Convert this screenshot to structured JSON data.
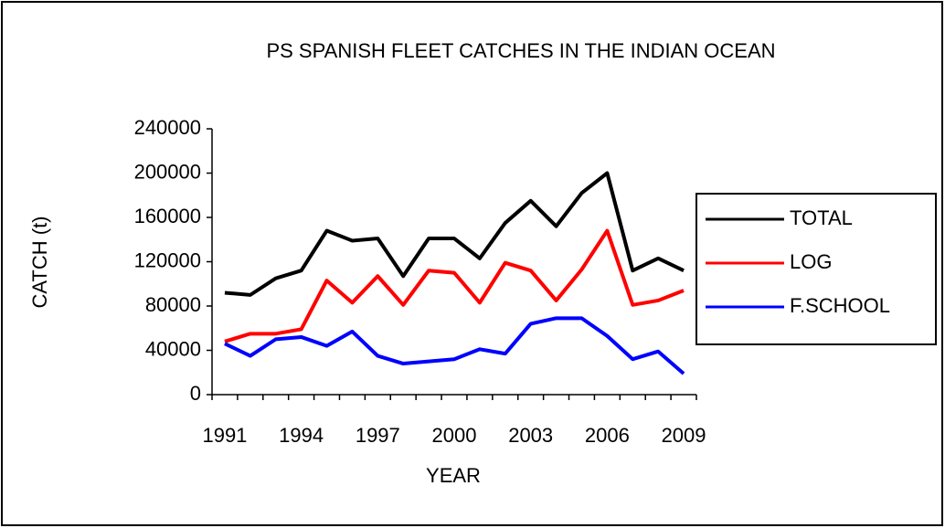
{
  "chart_data": {
    "type": "line",
    "title": "PS SPANISH FLEET CATCHES IN THE INDIAN OCEAN",
    "x_label": "YEAR",
    "y_label": "CATCH (t)",
    "categories": [
      "1991",
      null,
      null,
      "1994",
      null,
      null,
      "1997",
      null,
      null,
      "2000",
      null,
      null,
      "2003",
      null,
      null,
      "2006",
      null,
      null,
      "2009"
    ],
    "series": [
      {
        "name": "TOTAL",
        "color": "#000000",
        "values": [
          92000,
          90000,
          105000,
          112000,
          148000,
          139000,
          141000,
          107000,
          141000,
          141000,
          123000,
          155000,
          175000,
          152000,
          182000,
          200000,
          112000,
          123000,
          112000
        ]
      },
      {
        "name": "LOG",
        "color": "#ff0000",
        "values": [
          48000,
          55000,
          55000,
          59000,
          103000,
          83000,
          107000,
          81000,
          112000,
          110000,
          83000,
          119000,
          112000,
          85000,
          113000,
          148000,
          81000,
          85000,
          94000
        ]
      },
      {
        "name": "F.SCHOOL",
        "color": "#0000ff",
        "values": [
          46000,
          35000,
          50000,
          52000,
          44000,
          57000,
          35000,
          28000,
          30000,
          32000,
          41000,
          37000,
          64000,
          69000,
          69000,
          53000,
          32000,
          39000,
          19000
        ]
      }
    ],
    "ylim": [
      0,
      240000
    ],
    "yticks": [
      0,
      40000,
      80000,
      120000,
      160000,
      200000,
      240000
    ],
    "grid": false,
    "legend": "right"
  }
}
